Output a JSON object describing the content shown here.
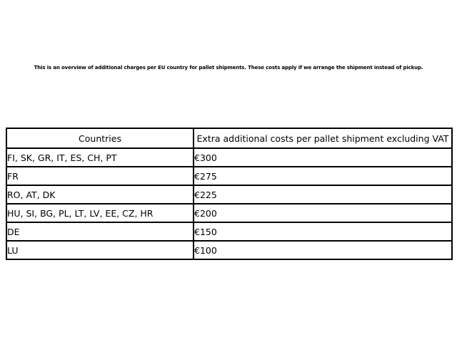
{
  "page": {
    "caption": "This is an overview of additional charges per EU country for pallet shipments. These costs apply if we arrange the shipment instead of pickup."
  },
  "table": {
    "headers": [
      "Countries",
      "Extra additional costs per pallet shipment excluding VAT"
    ],
    "rows": [
      {
        "countries": "FI, SK, GR, IT, ES, CH, PT",
        "cost": "€300"
      },
      {
        "countries": "FR",
        "cost": "€275"
      },
      {
        "countries": "RO, AT, DK",
        "cost": "€225"
      },
      {
        "countries": "HU, SI, BG, PL, LT, LV, EE, CZ, HR",
        "cost": "€200"
      },
      {
        "countries": "DE",
        "cost": "€150"
      },
      {
        "countries": "LU",
        "cost": "€100"
      }
    ]
  },
  "chart_data": {
    "type": "table",
    "title": "This is an overview of additional charges per EU country for pallet shipments. These costs apply if we arrange the shipment instead of pickup.",
    "columns": [
      "Countries",
      "Extra additional costs per pallet shipment excluding VAT"
    ],
    "rows": [
      [
        "FI, SK, GR, IT, ES, CH, PT",
        "€300"
      ],
      [
        "FR",
        "€275"
      ],
      [
        "RO, AT, DK",
        "€225"
      ],
      [
        "HU, SI, BG, PL, LT, LV, EE, CZ, HR",
        "€200"
      ],
      [
        "DE",
        "€150"
      ],
      [
        "LU",
        "€100"
      ]
    ],
    "values_eur": [
      300,
      275,
      225,
      200,
      150,
      100
    ],
    "currency": "EUR"
  },
  "colors": {
    "background": "#ffffff",
    "border": "#000000",
    "text": "#000000"
  }
}
